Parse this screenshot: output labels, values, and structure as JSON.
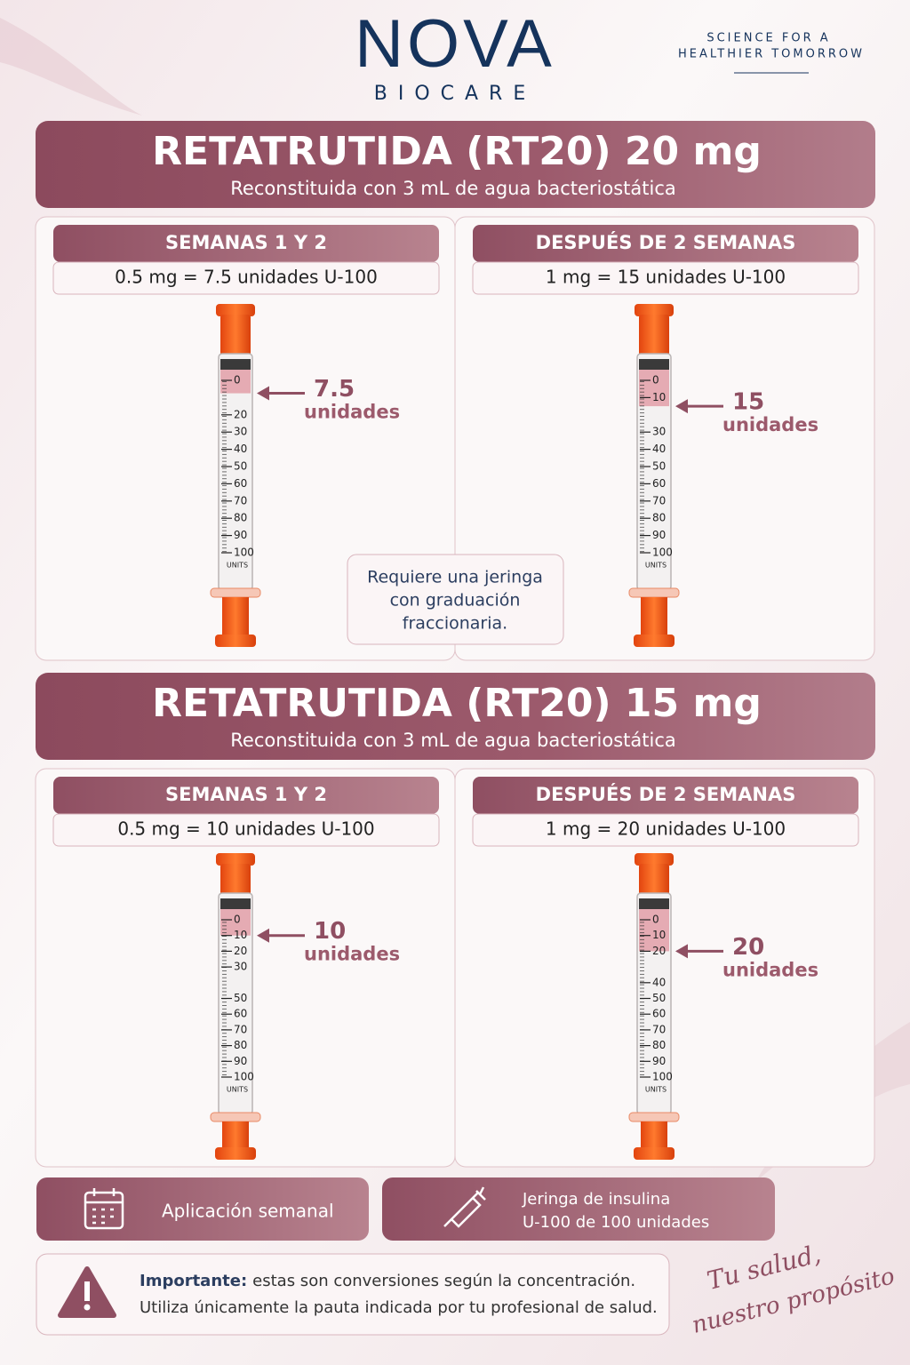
{
  "header": {
    "brand": "NOVA",
    "sub": "BIOCARE",
    "tagline": [
      "SCIENCE FOR A",
      "HEALTHIER TOMORROW"
    ]
  },
  "sections": [
    {
      "title": "RETATRUTIDA (RT20) 20 mg",
      "subtitle": "Reconstituida con 3 mL de agua bacteriostática",
      "panels": [
        {
          "heading": "SEMANAS 1 Y 2",
          "conversion": "0.5 mg = 7.5 unidades U-100",
          "syringe": {
            "ticks": [
              0,
              20,
              30,
              40,
              50,
              60,
              70,
              80,
              90,
              100
            ],
            "units_label": "UNITS",
            "dose": 7.5,
            "dose_unit": "unidades"
          }
        },
        {
          "heading": "DESPUÉS DE 2 SEMANAS",
          "conversion": "1 mg = 15 unidades U-100",
          "syringe": {
            "ticks": [
              0,
              10,
              30,
              40,
              50,
              60,
              70,
              80,
              90,
              100
            ],
            "units_label": "UNITS",
            "dose": 15,
            "dose_unit": "unidades"
          }
        }
      ],
      "note": [
        "Requiere una jeringa",
        "con graduación",
        "fraccionaria."
      ]
    },
    {
      "title": "RETATRUTIDA (RT20) 15 mg",
      "subtitle": "Reconstituida con 3 mL de agua bacteriostática",
      "panels": [
        {
          "heading": "SEMANAS 1 Y 2",
          "conversion": "0.5 mg = 10 unidades U-100",
          "syringe": {
            "ticks": [
              0,
              10,
              20,
              30,
              50,
              60,
              70,
              80,
              90,
              100
            ],
            "units_label": "UNITS",
            "dose": 10,
            "dose_unit": "unidades"
          }
        },
        {
          "heading": "DESPUÉS DE 2 SEMANAS",
          "conversion": "1 mg = 20 unidades U-100",
          "syringe": {
            "ticks": [
              0,
              10,
              20,
              40,
              50,
              60,
              70,
              80,
              90,
              100
            ],
            "units_label": "UNITS",
            "dose": 20,
            "dose_unit": "unidades"
          }
        }
      ]
    }
  ],
  "features": [
    [
      "Aplicación semanal"
    ],
    [
      "Jeringa de insulina",
      "U-100 de 100 unidades"
    ]
  ],
  "important": {
    "label": "Importante:",
    "lines": [
      "estas son conversiones según la concentración.",
      "Utiliza únicamente la pauta indicada por tu profesional de salud."
    ]
  },
  "slogan": [
    "Tu salud,",
    "nuestro propósito"
  ]
}
